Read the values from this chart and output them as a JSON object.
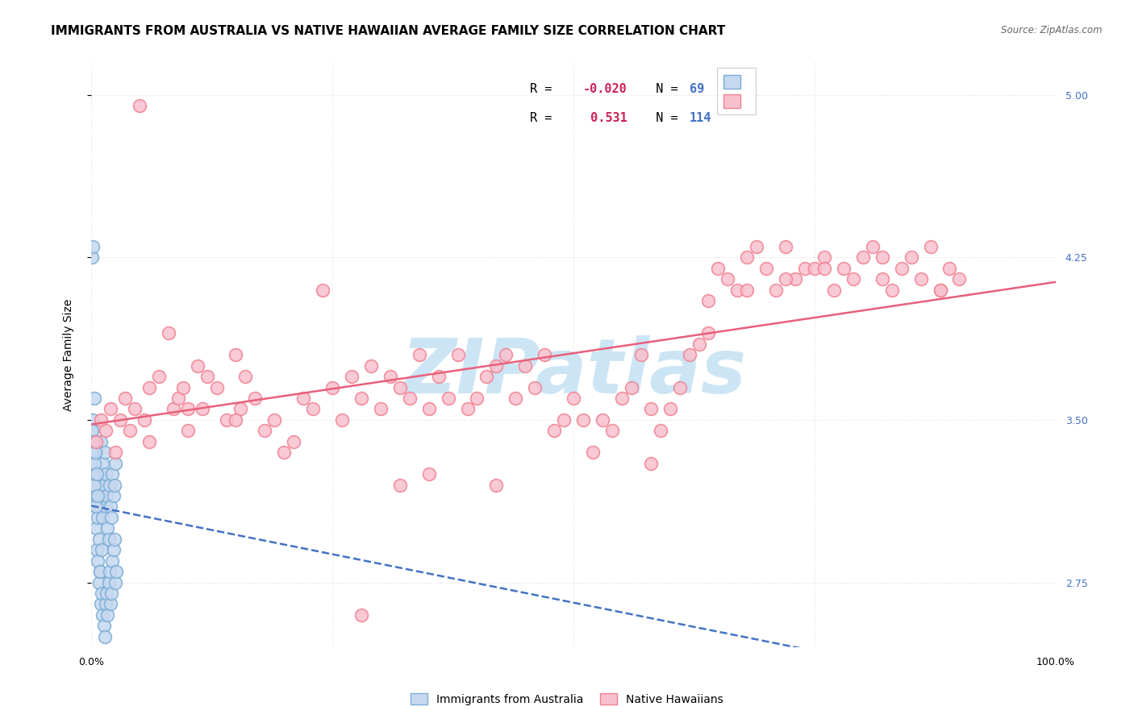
{
  "title": "IMMIGRANTS FROM AUSTRALIA VS NATIVE HAWAIIAN AVERAGE FAMILY SIZE CORRELATION CHART",
  "source": "Source: ZipAtlas.com",
  "ylabel": "Average Family Size",
  "xlim": [
    0.0,
    1.0
  ],
  "ylim": [
    2.45,
    5.15
  ],
  "yticks": [
    2.75,
    3.5,
    4.25,
    5.0
  ],
  "xticks": [
    0.0,
    0.25,
    0.5,
    0.75,
    1.0
  ],
  "xticklabels": [
    "0.0%",
    "",
    "",
    "",
    "100.0%"
  ],
  "australia": {
    "label": "Immigrants from Australia",
    "R": -0.02,
    "N": 69,
    "face_color": "#c5d8f0",
    "edge_color": "#7badd4",
    "line_color": "#4472c4",
    "line_style": "--",
    "x": [
      0.001,
      0.001,
      0.002,
      0.002,
      0.002,
      0.003,
      0.003,
      0.003,
      0.004,
      0.004,
      0.005,
      0.005,
      0.006,
      0.006,
      0.007,
      0.007,
      0.008,
      0.008,
      0.009,
      0.009,
      0.01,
      0.01,
      0.011,
      0.011,
      0.012,
      0.012,
      0.013,
      0.014,
      0.015,
      0.015,
      0.016,
      0.017,
      0.018,
      0.019,
      0.02,
      0.021,
      0.022,
      0.023,
      0.024,
      0.025,
      0.001,
      0.001,
      0.002,
      0.002,
      0.003,
      0.003,
      0.004,
      0.005,
      0.006,
      0.007,
      0.008,
      0.009,
      0.01,
      0.011,
      0.012,
      0.013,
      0.014,
      0.015,
      0.016,
      0.017,
      0.018,
      0.019,
      0.02,
      0.021,
      0.022,
      0.023,
      0.024,
      0.025,
      0.026
    ],
    "y": [
      3.45,
      4.25,
      4.3,
      3.3,
      3.5,
      3.2,
      3.4,
      3.6,
      3.1,
      3.25,
      3.0,
      3.35,
      2.9,
      3.15,
      2.85,
      3.05,
      2.95,
      3.2,
      2.8,
      3.1,
      3.4,
      3.25,
      3.15,
      2.9,
      3.3,
      3.05,
      3.2,
      3.35,
      3.1,
      3.25,
      3.15,
      3.0,
      2.95,
      3.2,
      3.1,
      3.05,
      3.25,
      3.15,
      3.2,
      3.3,
      3.45,
      3.35,
      3.4,
      3.25,
      3.3,
      3.2,
      3.35,
      3.1,
      3.25,
      3.15,
      2.75,
      2.8,
      2.65,
      2.7,
      2.6,
      2.55,
      2.5,
      2.65,
      2.7,
      2.6,
      2.75,
      2.8,
      2.65,
      2.7,
      2.85,
      2.9,
      2.95,
      2.75,
      2.8
    ]
  },
  "hawaiian": {
    "label": "Native Hawaiians",
    "R": 0.531,
    "N": 114,
    "face_color": "#f9c0ce",
    "edge_color": "#f08090",
    "line_color": "#e8607a",
    "line_style": "-",
    "x": [
      0.005,
      0.01,
      0.015,
      0.02,
      0.025,
      0.03,
      0.035,
      0.04,
      0.045,
      0.05,
      0.055,
      0.06,
      0.07,
      0.08,
      0.085,
      0.09,
      0.095,
      0.1,
      0.11,
      0.115,
      0.12,
      0.13,
      0.14,
      0.15,
      0.155,
      0.16,
      0.17,
      0.18,
      0.19,
      0.2,
      0.21,
      0.22,
      0.23,
      0.24,
      0.25,
      0.26,
      0.27,
      0.28,
      0.29,
      0.3,
      0.31,
      0.32,
      0.33,
      0.34,
      0.35,
      0.36,
      0.37,
      0.38,
      0.39,
      0.4,
      0.41,
      0.42,
      0.43,
      0.44,
      0.45,
      0.46,
      0.47,
      0.48,
      0.49,
      0.5,
      0.51,
      0.52,
      0.53,
      0.54,
      0.55,
      0.56,
      0.57,
      0.58,
      0.59,
      0.6,
      0.61,
      0.62,
      0.63,
      0.64,
      0.65,
      0.66,
      0.67,
      0.68,
      0.69,
      0.7,
      0.71,
      0.72,
      0.73,
      0.74,
      0.75,
      0.76,
      0.77,
      0.78,
      0.79,
      0.8,
      0.81,
      0.82,
      0.83,
      0.84,
      0.85,
      0.86,
      0.87,
      0.88,
      0.89,
      0.9,
      0.32,
      0.28,
      0.35,
      0.42,
      0.06,
      0.1,
      0.15,
      0.58,
      0.64,
      0.68,
      0.72,
      0.76,
      0.82,
      0.88
    ],
    "y": [
      3.4,
      3.5,
      3.45,
      3.55,
      3.35,
      3.5,
      3.6,
      3.45,
      3.55,
      4.95,
      3.5,
      3.65,
      3.7,
      3.9,
      3.55,
      3.6,
      3.65,
      3.45,
      3.75,
      3.55,
      3.7,
      3.65,
      3.5,
      3.8,
      3.55,
      3.7,
      3.6,
      3.45,
      3.5,
      3.35,
      3.4,
      3.6,
      3.55,
      4.1,
      3.65,
      3.5,
      3.7,
      3.6,
      3.75,
      3.55,
      3.7,
      3.65,
      3.6,
      3.8,
      3.55,
      3.7,
      3.6,
      3.8,
      3.55,
      3.6,
      3.7,
      3.75,
      3.8,
      3.6,
      3.75,
      3.65,
      3.8,
      3.45,
      3.5,
      3.6,
      3.5,
      3.35,
      3.5,
      3.45,
      3.6,
      3.65,
      3.8,
      3.55,
      3.45,
      3.55,
      3.65,
      3.8,
      3.85,
      3.9,
      4.2,
      4.15,
      4.1,
      4.25,
      4.3,
      4.2,
      4.1,
      4.3,
      4.15,
      4.2,
      4.2,
      4.25,
      4.1,
      4.2,
      4.15,
      4.25,
      4.3,
      4.15,
      4.1,
      4.2,
      4.25,
      4.15,
      4.3,
      4.1,
      4.2,
      4.15,
      3.2,
      2.6,
      3.25,
      3.2,
      3.4,
      3.55,
      3.5,
      3.3,
      4.05,
      4.1,
      4.15,
      4.2,
      4.25,
      4.1
    ]
  },
  "legend_box": {
    "R_color": "#cc2255",
    "N_color": "#4472c4",
    "border_color": "#cccccc"
  },
  "watermark": "ZIPatlas",
  "watermark_color": "#cce5f5",
  "background_color": "#ffffff",
  "grid_color": "#e0e0e0",
  "title_fontsize": 11,
  "axis_label_fontsize": 10,
  "tick_fontsize": 9,
  "right_ytick_color": "#4472c4"
}
